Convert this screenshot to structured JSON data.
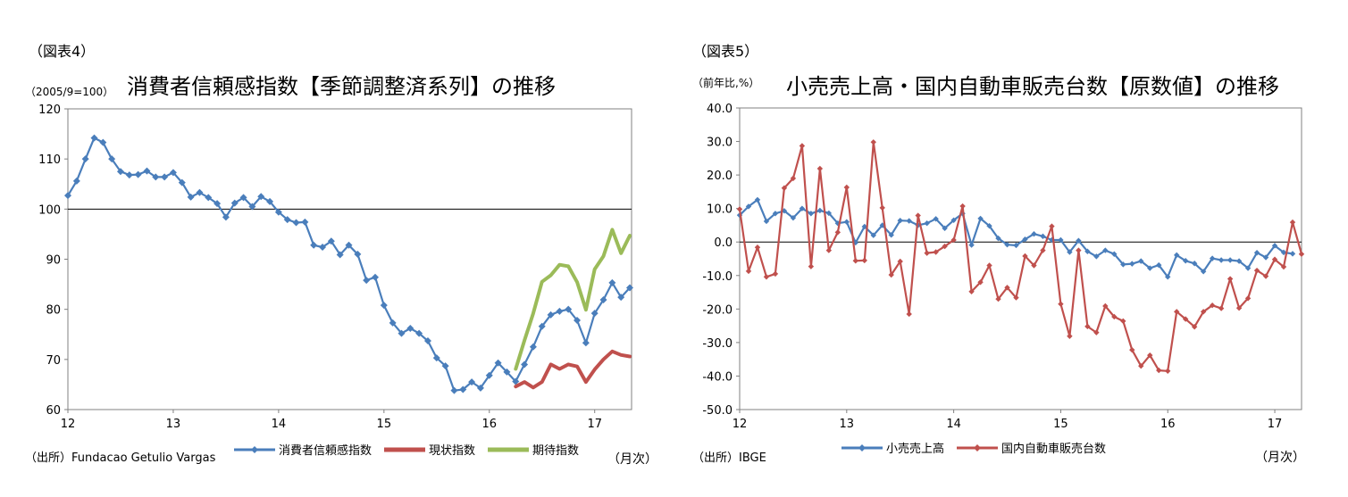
{
  "charts": [
    {
      "figure_label": "（図表4）",
      "unit_label": "（2005/9=100）",
      "source": "（出所）Fundacao Getulio Vargas",
      "month_label": "（月次）"
    },
    {
      "figure_label": "（図表5）",
      "unit_label": "（前年比,%）",
      "source": "（出所）IBGE",
      "month_label": "（月次）"
    }
  ],
  "chart_data": [
    {
      "type": "line",
      "title": "消費者信頼感指数【季節調整済系列】の推移",
      "xlabel": "",
      "ylabel": "",
      "ylim": [
        60,
        120
      ],
      "yticks": [
        "120",
        "110",
        "100",
        "90",
        "80",
        "70",
        "60"
      ],
      "ytick_values": [
        120,
        110,
        100,
        90,
        80,
        70,
        60
      ],
      "xlim": [
        12,
        17.35
      ],
      "xticks": [
        "12",
        "13",
        "14",
        "15",
        "16",
        "17"
      ],
      "xtick_values": [
        12,
        13,
        14,
        15,
        16,
        17
      ],
      "reference_line": 100,
      "grid": false,
      "legend_position": "bottom",
      "series": [
        {
          "name": "消費者信頼感指数",
          "color": "#4a7ebb",
          "marker": "diamond",
          "x_start": 12.0,
          "x_step": 0.08333,
          "values": [
            102.7,
            105.6,
            110.0,
            114.2,
            113.3,
            110.0,
            107.5,
            106.8,
            106.9,
            107.6,
            106.4,
            106.4,
            107.3,
            105.3,
            102.4,
            103.3,
            102.3,
            101.1,
            98.4,
            101.2,
            102.3,
            100.5,
            102.5,
            101.5,
            99.4,
            97.9,
            97.3,
            97.4,
            92.8,
            92.4,
            93.6,
            90.9,
            92.8,
            91.0,
            85.8,
            86.4,
            80.8,
            77.3,
            75.2,
            76.2,
            75.2,
            73.7,
            70.3,
            68.7,
            63.8,
            64.0,
            65.5,
            64.3,
            66.8,
            69.3,
            67.5,
            65.6,
            69.0,
            72.5,
            76.6,
            78.9,
            79.6,
            80.0,
            77.8,
            73.3,
            79.2,
            81.9,
            85.3,
            82.4,
            84.3
          ]
        },
        {
          "name": "現状指数",
          "color": "#c0504d",
          "marker": "none",
          "x_start": 16.25,
          "x_step": 0.08333,
          "values": [
            64.6,
            65.5,
            64.4,
            65.5,
            69.0,
            68.1,
            69.0,
            68.6,
            65.5,
            68.0,
            70.0,
            71.6,
            70.9,
            70.6
          ]
        },
        {
          "name": "期待指数",
          "color": "#9bbb59",
          "marker": "none",
          "x_start": 16.25,
          "x_step": 0.08333,
          "values": [
            68.1,
            73.8,
            79.2,
            85.5,
            86.8,
            88.9,
            88.6,
            85.4,
            79.9,
            88.0,
            90.6,
            95.9,
            91.2,
            94.7
          ]
        }
      ]
    },
    {
      "type": "line",
      "title": "小売売上高・国内自動車販売台数【原数値】の推移",
      "xlabel": "",
      "ylabel": "",
      "ylim": [
        -50,
        40
      ],
      "yticks": [
        "40.0",
        "30.0",
        "20.0",
        "10.0",
        "0.0",
        "-10.0",
        "-20.0",
        "-30.0",
        "-40.0",
        "-50.0"
      ],
      "ytick_values": [
        40,
        30,
        20,
        10,
        0,
        -10,
        -20,
        -30,
        -40,
        -50
      ],
      "xlim": [
        12,
        17.25
      ],
      "xticks": [
        "12",
        "13",
        "14",
        "15",
        "16",
        "17"
      ],
      "xtick_values": [
        12,
        13,
        14,
        15,
        16,
        17
      ],
      "reference_line": 0,
      "grid": false,
      "legend_position": "bottom",
      "series": [
        {
          "name": "小売売上高",
          "color": "#4a7ebb",
          "marker": "diamond",
          "x_start": 12.0,
          "x_step": 0.08333,
          "values": [
            8.0,
            10.6,
            12.6,
            6.2,
            8.5,
            9.3,
            7.2,
            10.0,
            8.5,
            9.4,
            8.6,
            5.6,
            6.0,
            -0.2,
            4.6,
            2.0,
            5.0,
            2.1,
            6.4,
            6.3,
            5.0,
            5.6,
            6.9,
            4.1,
            6.5,
            8.5,
            -0.9,
            7.0,
            4.8,
            1.1,
            -0.8,
            -1.0,
            0.8,
            2.4,
            1.7,
            0.6,
            0.6,
            -3.0,
            0.4,
            -2.8,
            -4.3,
            -2.5,
            -3.6,
            -6.7,
            -6.5,
            -5.7,
            -7.8,
            -6.9,
            -10.4,
            -3.9,
            -5.6,
            -6.4,
            -8.8,
            -4.9,
            -5.4,
            -5.4,
            -5.7,
            -7.8,
            -3.2,
            -4.6,
            -1.1,
            -3.1,
            -3.5
          ]
        },
        {
          "name": "国内自動車販売台数",
          "color": "#c0504d",
          "marker": "diamond",
          "x_start": 12.0,
          "x_step": 0.08333,
          "values": [
            9.8,
            -8.7,
            -1.6,
            -10.4,
            -9.5,
            16.1,
            19.0,
            28.7,
            -7.3,
            21.9,
            -2.5,
            2.9,
            16.3,
            -5.6,
            -5.5,
            29.8,
            10.2,
            -9.8,
            -5.8,
            -21.5,
            7.9,
            -3.3,
            -3.0,
            -1.3,
            0.6,
            10.7,
            -14.8,
            -12.0,
            -7.0,
            -17.0,
            -13.6,
            -16.6,
            -4.2,
            -7.0,
            -2.5,
            4.7,
            -18.5,
            -28.1,
            -2.5,
            -25.2,
            -27.0,
            -19.1,
            -22.3,
            -23.6,
            -32.2,
            -37.0,
            -33.8,
            -38.3,
            -38.5,
            -20.8,
            -23.0,
            -25.3,
            -20.8,
            -18.9,
            -19.8,
            -11.0,
            -19.7,
            -16.8,
            -8.5,
            -10.2,
            -5.2,
            -7.4,
            5.9,
            -3.6
          ]
        }
      ]
    }
  ]
}
